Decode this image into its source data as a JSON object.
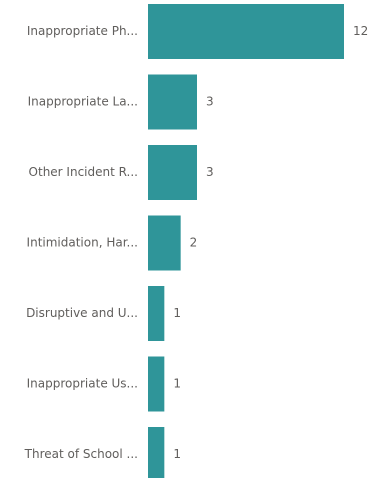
{
  "chart_data": {
    "type": "bar",
    "orientation": "horizontal",
    "categories": [
      "Inappropriate Ph...",
      "Inappropriate La...",
      "Other Incident R...",
      "Intimidation, Har...",
      "Disruptive and U...",
      "Inappropriate Us...",
      "Threat of School ..."
    ],
    "values": [
      12,
      3,
      3,
      2,
      1,
      1,
      1
    ],
    "xlim": [
      0,
      12
    ],
    "grid": false,
    "legend": "none",
    "bar_color": "#2f9599",
    "label_color": "#605e5c"
  }
}
